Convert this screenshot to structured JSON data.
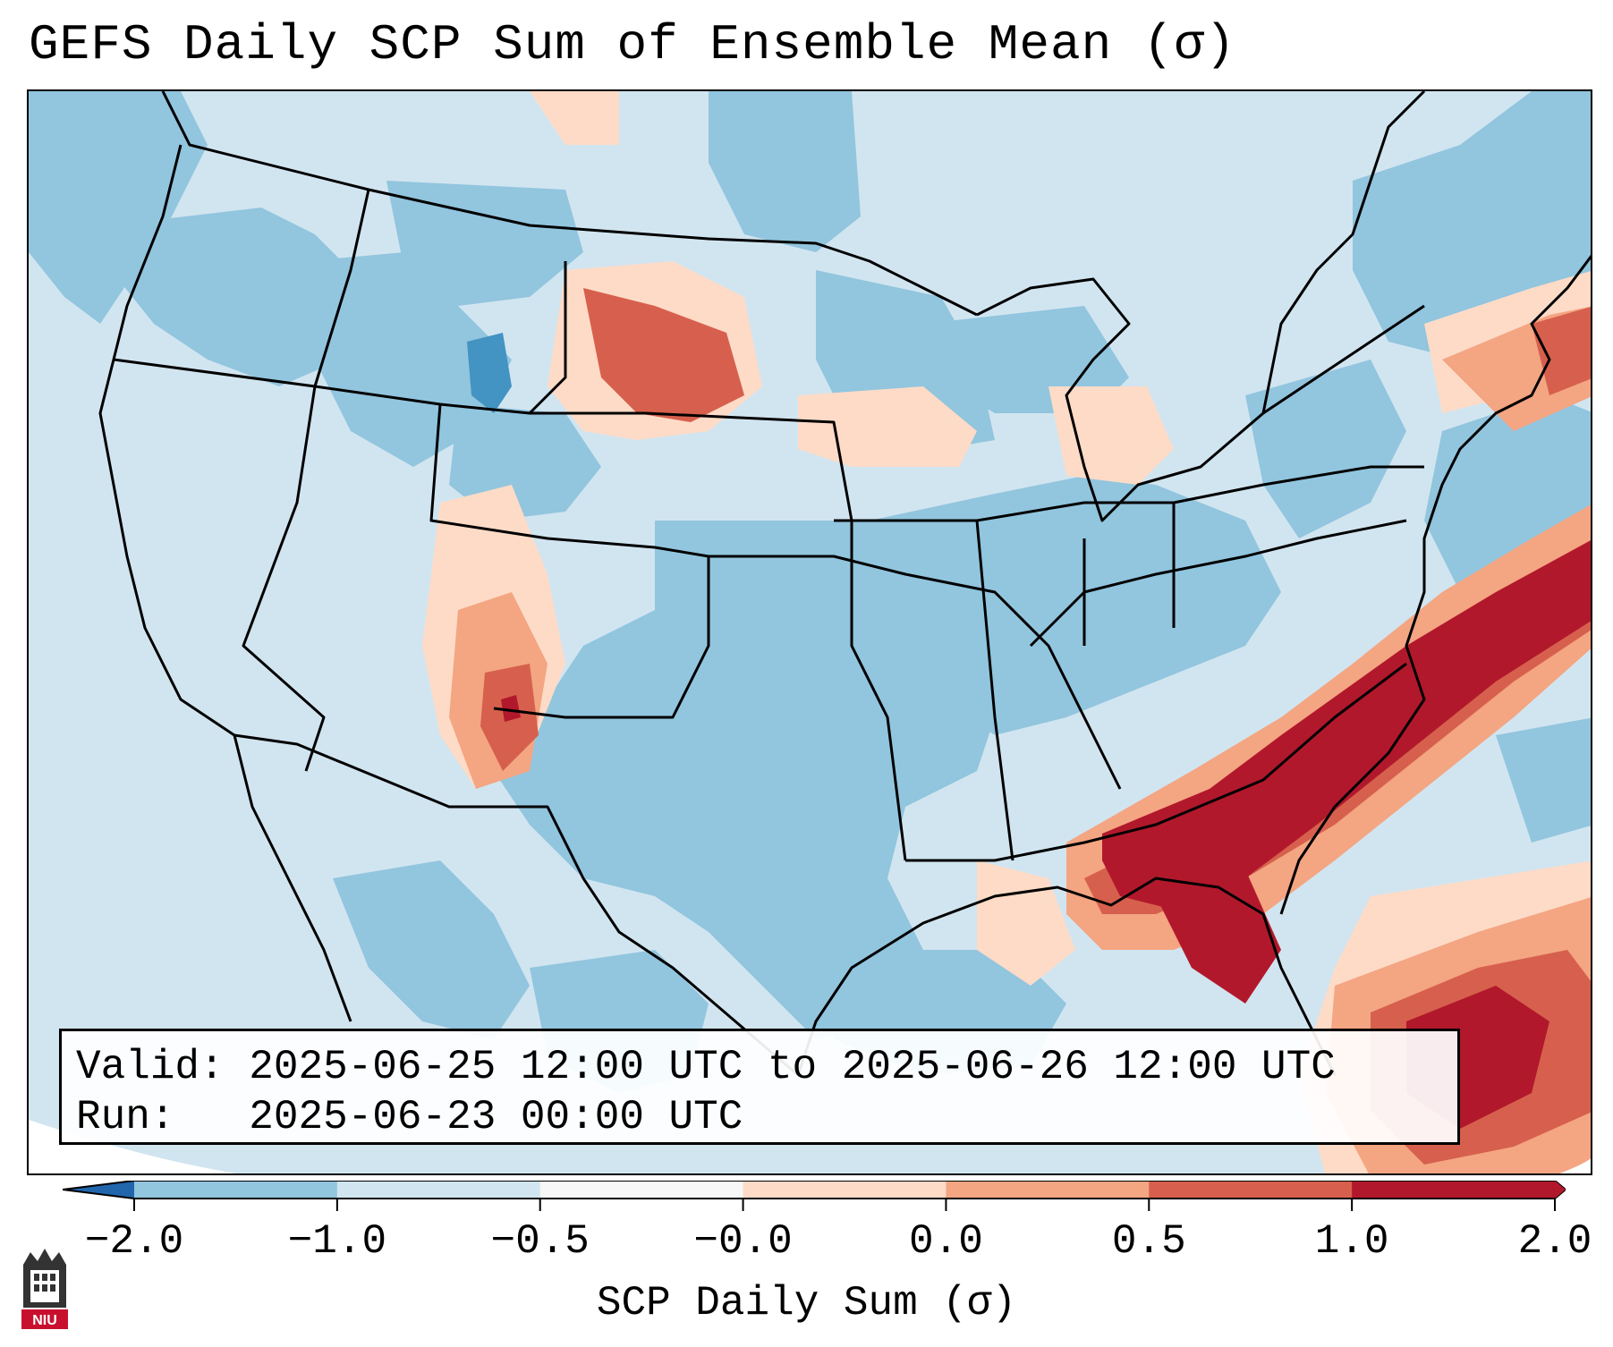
{
  "title": "GEFS Daily SCP Sum of Ensemble Mean (σ)",
  "info": {
    "valid_label": "Valid:",
    "valid_value": "2025-06-25 12:00 UTC to 2025-06-26 12:00 UTC",
    "run_label": "Run:",
    "run_value": "2025-06-23 00:00 UTC"
  },
  "colorbar": {
    "label": "SCP Daily Sum (σ)",
    "ticks": [
      "−2.0",
      "−1.0",
      "−0.5",
      "−0.0",
      "0.0",
      "0.5",
      "1.0",
      "2.0"
    ],
    "colors": [
      "#4393c3",
      "#92c5de",
      "#d1e5f0",
      "#f7f7f7",
      "#fddbc7",
      "#f4a582",
      "#d6604d",
      "#b2182b"
    ],
    "extend_low_color": "#2166ac",
    "extend_high_color": "#b2182b"
  },
  "logo": {
    "text": "NIU",
    "color": "#c8102e"
  },
  "map": {
    "background_color": "#d1e5f0",
    "ocean_outside_color": "#d1e5f0"
  }
}
